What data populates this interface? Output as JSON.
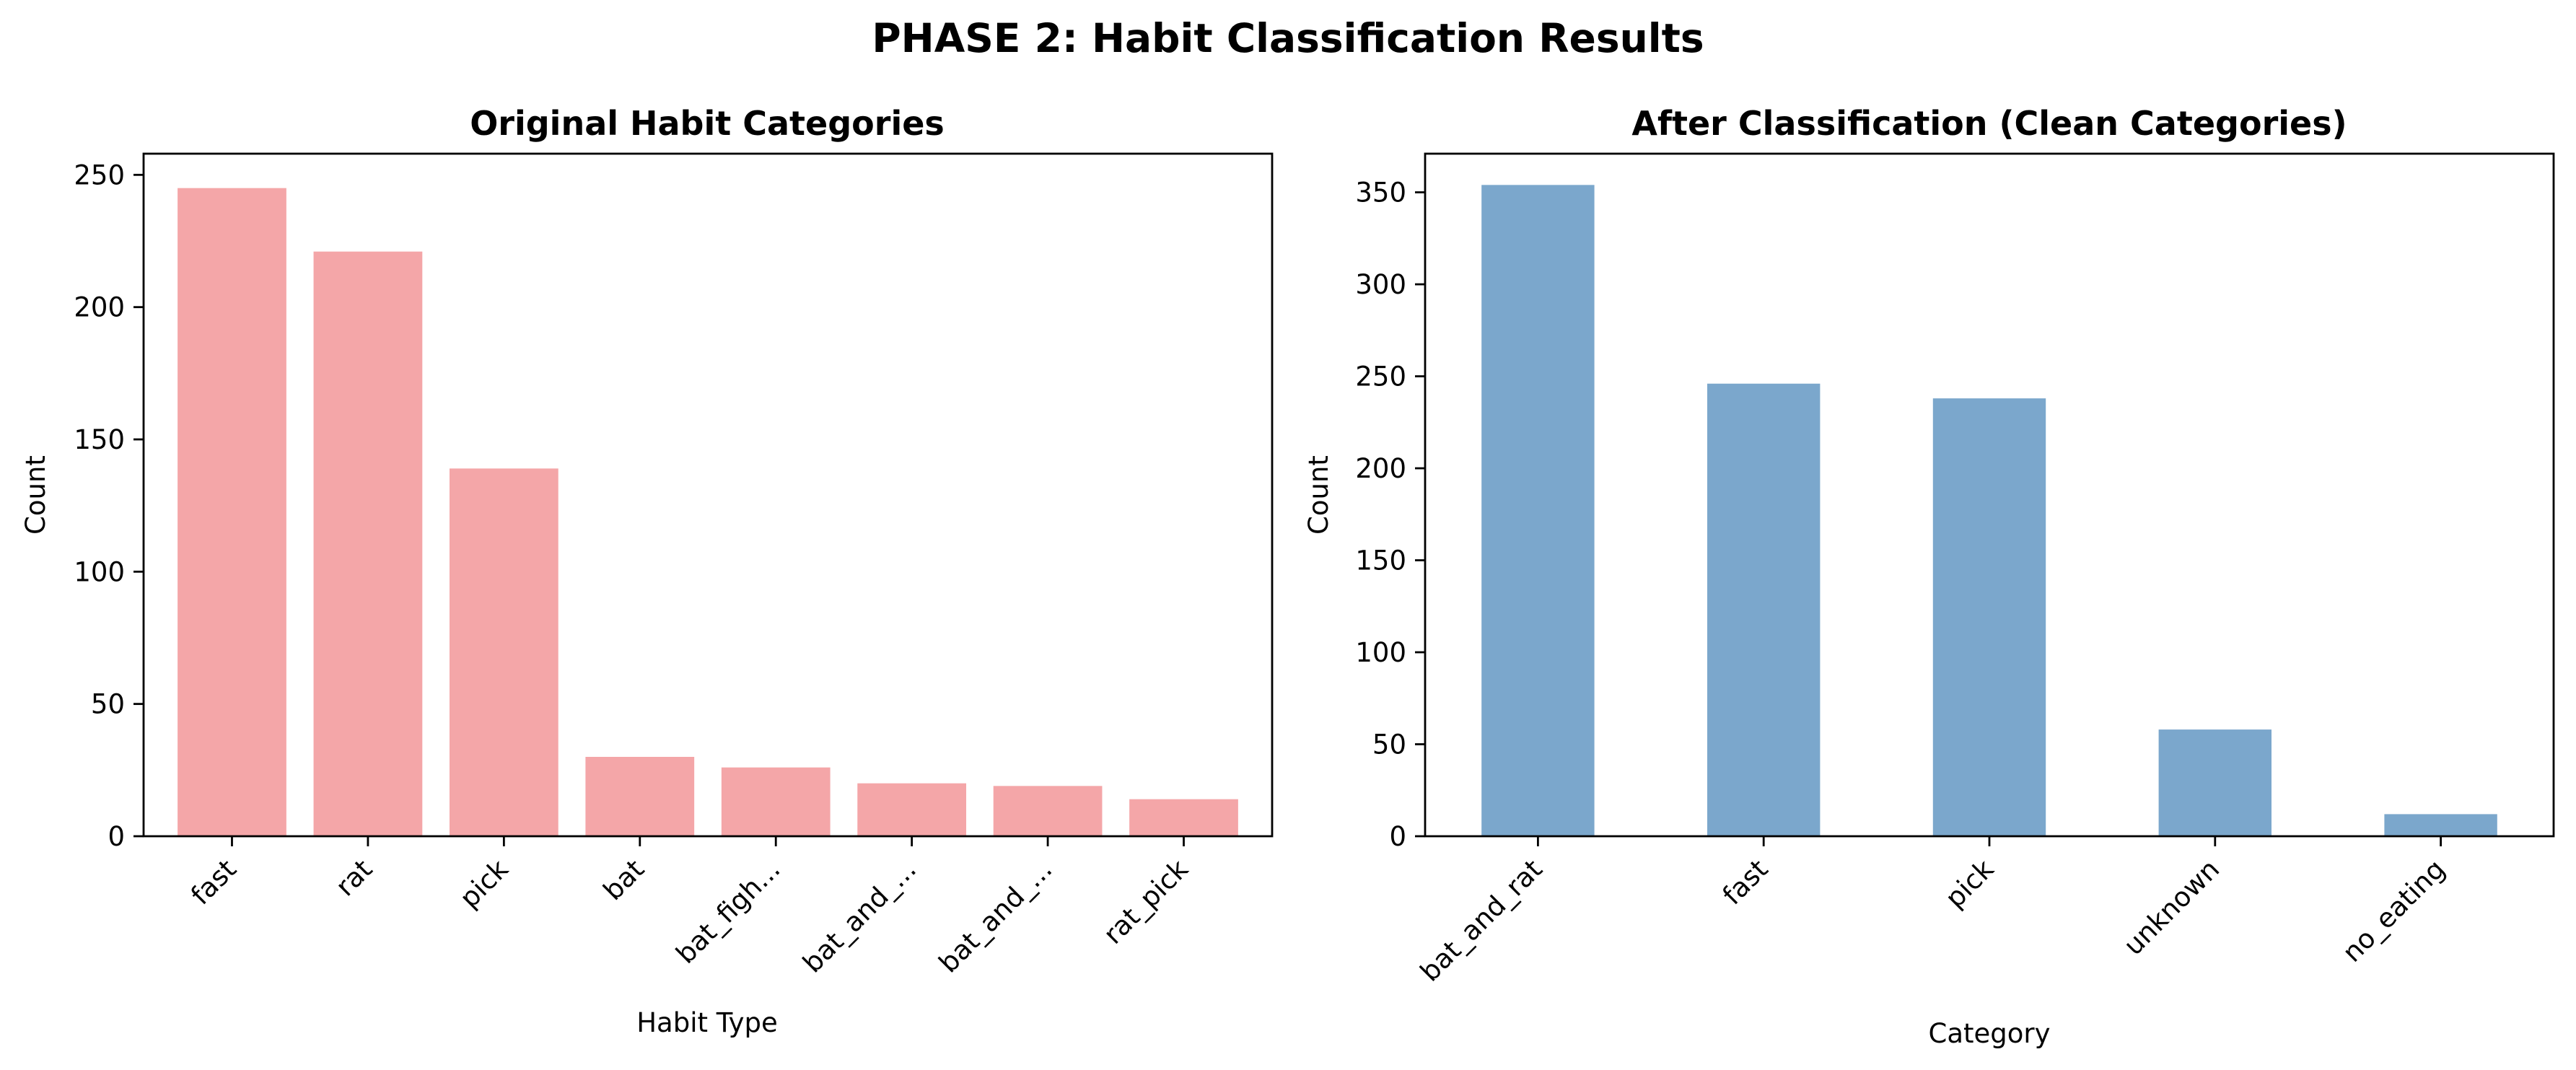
{
  "figure": {
    "suptitle": "PHASE 2: Habit Classification Results"
  },
  "chart_data": [
    {
      "type": "bar",
      "title": "Original Habit Categories",
      "xlabel": "Habit Type",
      "ylabel": "Count",
      "categories": [
        "fast",
        "rat",
        "pick",
        "bat",
        "bat_figh...",
        "bat_and_...",
        "bat_and_...",
        "rat_pick"
      ],
      "values": [
        245,
        221,
        139,
        30,
        26,
        20,
        19,
        14
      ],
      "ylim": [
        0,
        258
      ],
      "yticks": [
        0,
        50,
        100,
        150,
        200,
        250
      ],
      "color": "#f4a6a8",
      "grid": false
    },
    {
      "type": "bar",
      "title": "After Classification (Clean Categories)",
      "xlabel": "Category",
      "ylabel": "Count",
      "categories": [
        "bat_and_rat",
        "fast",
        "pick",
        "unknown",
        "no_eating"
      ],
      "values": [
        354,
        246,
        238,
        58,
        12
      ],
      "ylim": [
        0,
        371
      ],
      "yticks": [
        0,
        50,
        100,
        150,
        200,
        250,
        300,
        350
      ],
      "color": "#7ba7cc",
      "grid": false
    }
  ]
}
